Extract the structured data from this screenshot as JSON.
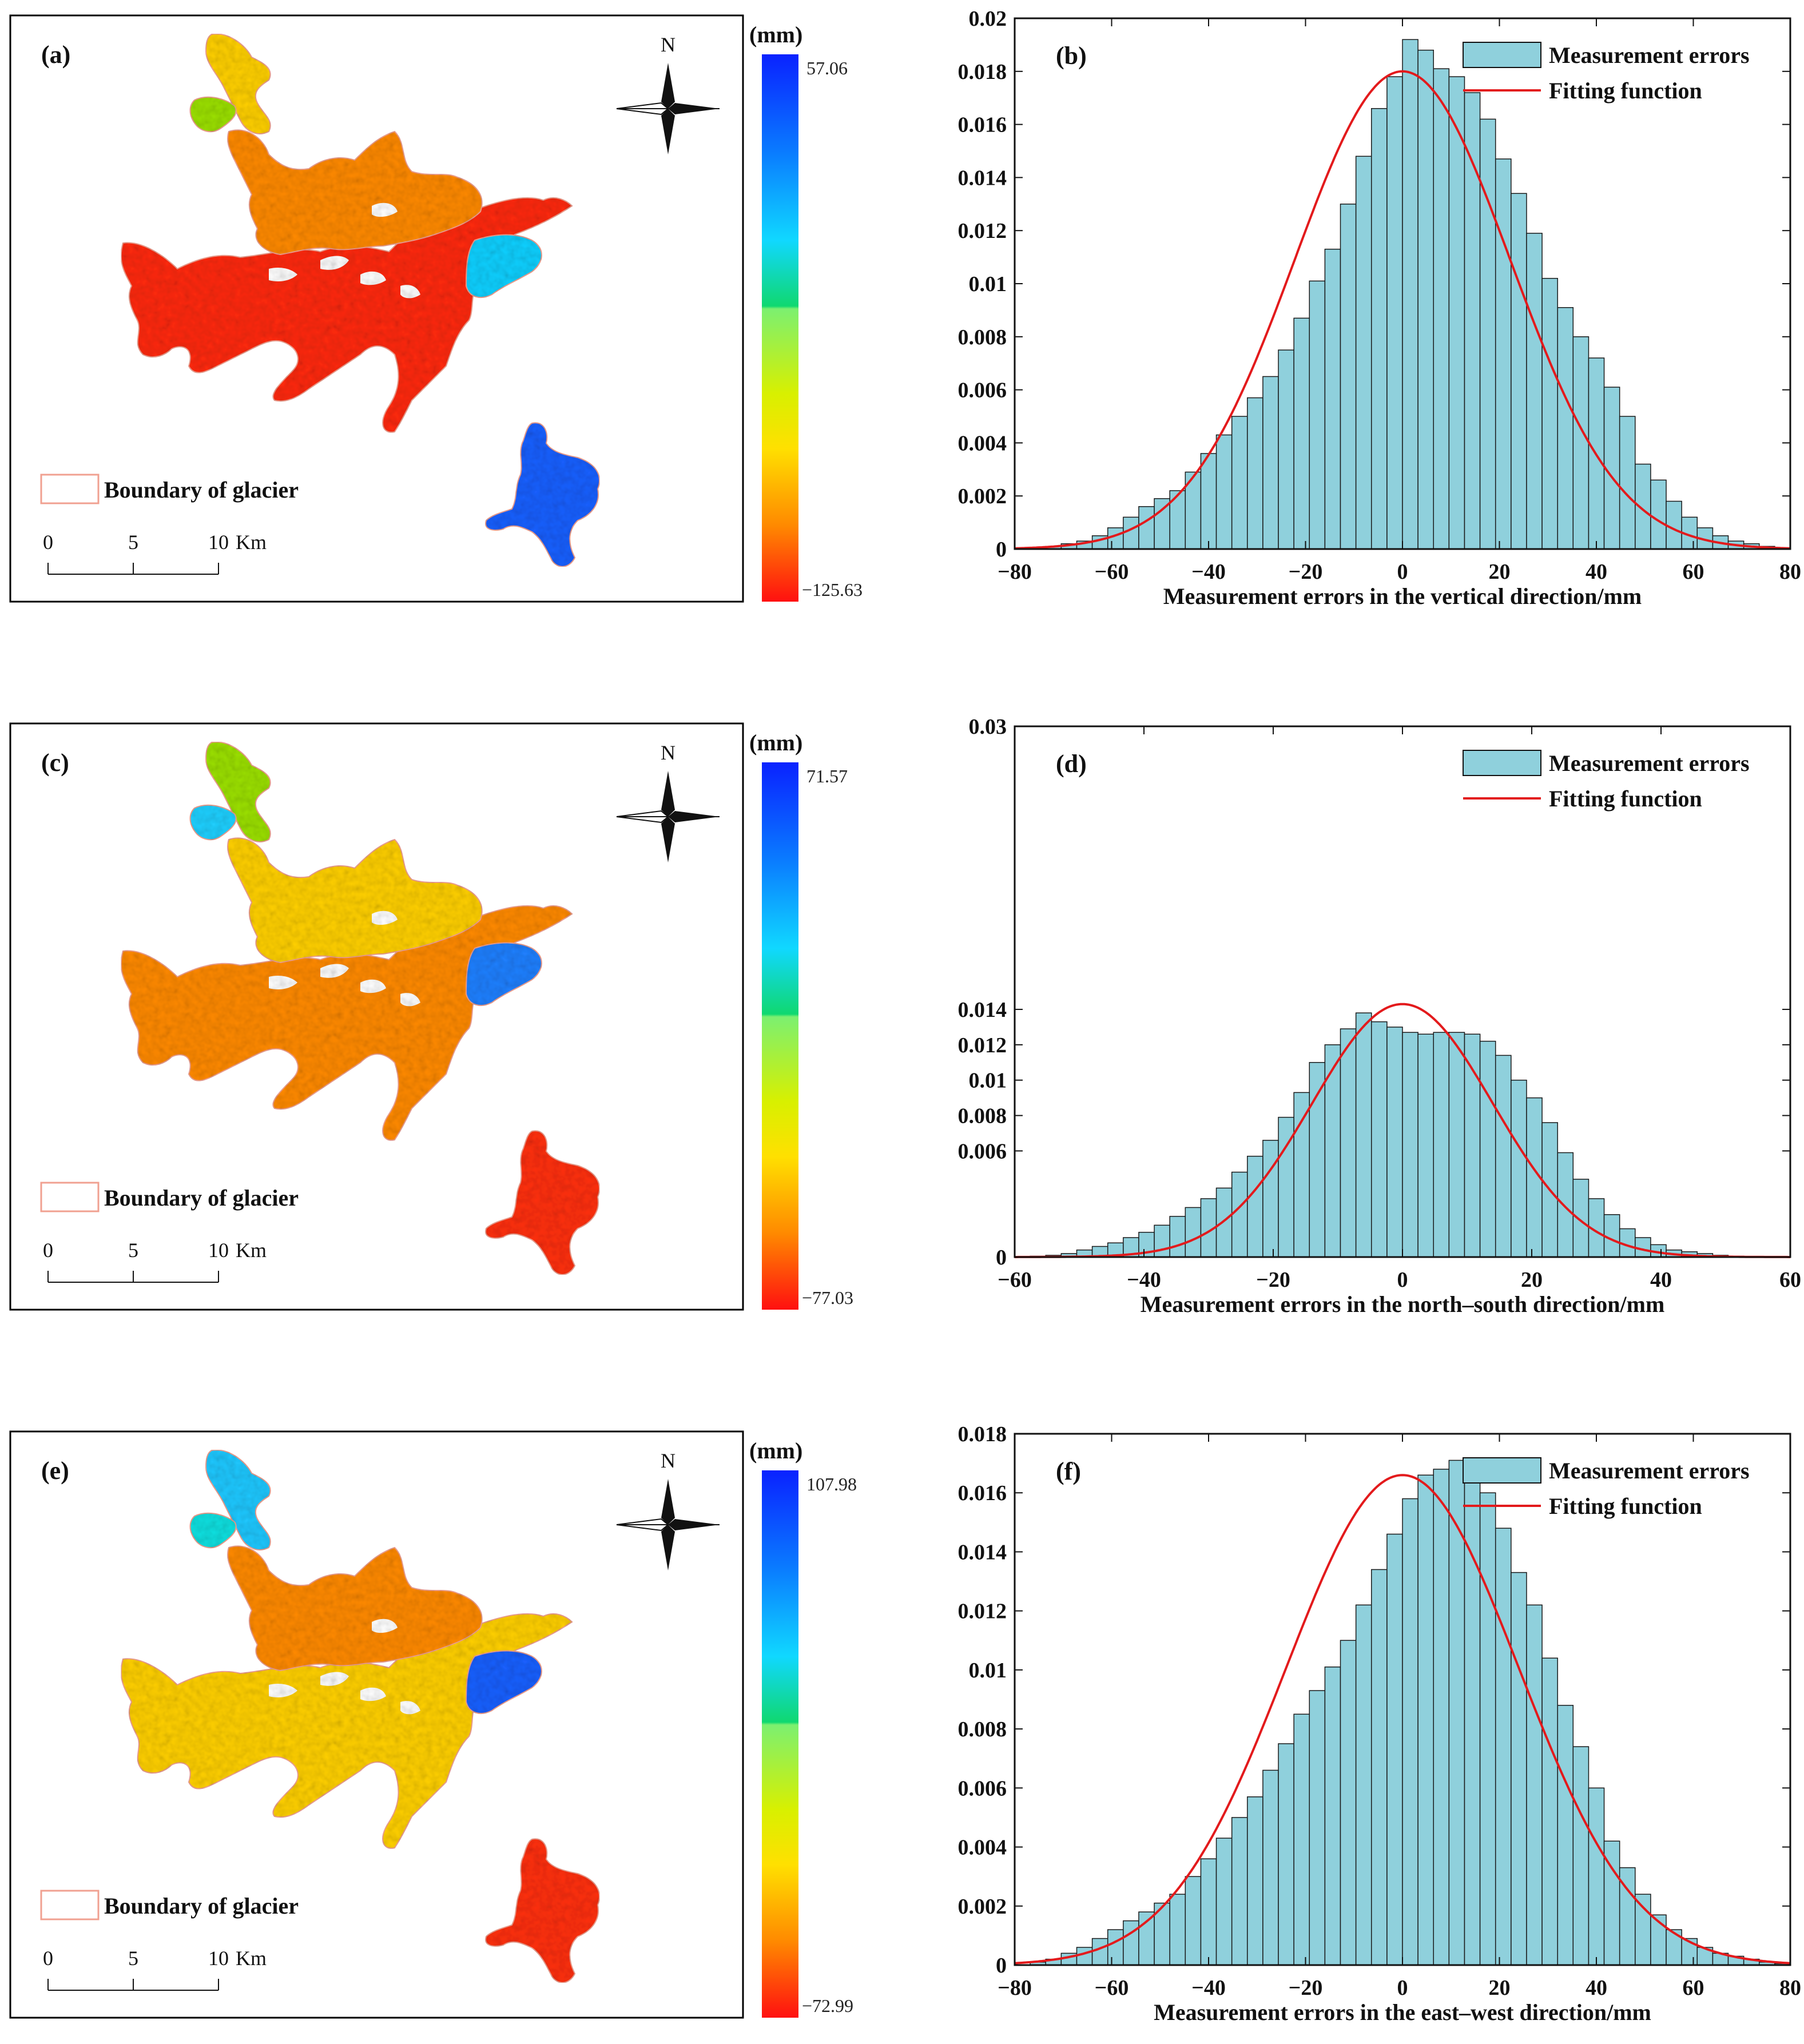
{
  "colors": {
    "bar_fill": "#8fd0dc",
    "bar_stroke": "#1a1a1a",
    "curve": "#e31a1c",
    "legend_swatch_fill": "#8fd0dc",
    "boundary": "#f0a090",
    "map_frame": "#000000"
  },
  "maps": [
    {
      "panel_label": "(a)",
      "unit": "(mm)",
      "max_value": "57.06",
      "min_value": "−125.63",
      "north_label": "N",
      "legend_label": "Boundary of glacier",
      "scale_ticks": [
        "0",
        "5",
        "10"
      ],
      "scale_unit": "Km",
      "icon": "compass-rose-icon",
      "glacier_palette": [
        "#ff2a10",
        "#ff8a00",
        "#ffd000",
        "#9be000",
        "#10d0ff",
        "#1a60ff"
      ]
    },
    {
      "panel_label": "(c)",
      "unit": "(mm)",
      "max_value": "71.57",
      "min_value": "−77.03",
      "north_label": "N",
      "legend_label": "Boundary of glacier",
      "scale_ticks": [
        "0",
        "5",
        "10"
      ],
      "scale_unit": "Km",
      "icon": "compass-rose-icon",
      "glacier_palette": [
        "#ff8a00",
        "#ffd000",
        "#9be000",
        "#20d0ff",
        "#2080ff",
        "#ff3010"
      ]
    },
    {
      "panel_label": "(e)",
      "unit": "(mm)",
      "max_value": "107.98",
      "min_value": "−72.99",
      "north_label": "N",
      "legend_label": "Boundary of glacier",
      "scale_ticks": [
        "0",
        "5",
        "10"
      ],
      "scale_unit": "Km",
      "icon": "compass-rose-icon",
      "glacier_palette": [
        "#ffd000",
        "#ff8a00",
        "#20c8ff",
        "#10e0e0",
        "#1a60ff",
        "#ff3010"
      ]
    }
  ],
  "chart_data": [
    {
      "panel_label": "(b)",
      "type": "bar",
      "subtype": "histogram-with-fit",
      "xlabel": "Measurement errors in the vertical direction/mm",
      "ylabel": "",
      "xlim": [
        -80,
        80
      ],
      "ylim": [
        0,
        0.02
      ],
      "xticks": [
        -80,
        -60,
        -40,
        -20,
        0,
        20,
        40,
        60,
        80
      ],
      "yticks": [
        0,
        0.002,
        0.004,
        0.006,
        0.008,
        0.01,
        0.012,
        0.014,
        0.016,
        0.018,
        0.02
      ],
      "xtick_labels": [
        "−80",
        "−60",
        "−40",
        "−20",
        "0",
        "20",
        "40",
        "60",
        "80"
      ],
      "ytick_labels": [
        "0",
        "0.002",
        "0.004",
        "0.006",
        "0.008",
        "0.01",
        "0.012",
        "0.014",
        "0.016",
        "0.018",
        "0.02"
      ],
      "bin_start": -80,
      "bin_width": 3.2,
      "values": [
        0,
        5e-05,
        0.0001,
        0.0002,
        0.0003,
        0.0005,
        0.0008,
        0.0012,
        0.0016,
        0.0019,
        0.0022,
        0.0029,
        0.0036,
        0.0043,
        0.005,
        0.0057,
        0.0065,
        0.0075,
        0.0087,
        0.0101,
        0.0113,
        0.013,
        0.0148,
        0.0166,
        0.0178,
        0.0192,
        0.0188,
        0.0181,
        0.0178,
        0.0172,
        0.0162,
        0.0147,
        0.0134,
        0.0119,
        0.0102,
        0.0091,
        0.008,
        0.0072,
        0.0061,
        0.005,
        0.0032,
        0.0026,
        0.0018,
        0.0012,
        0.0008,
        0.0005,
        0.0003,
        0.0002,
        0.0001,
        5e-05
      ],
      "fit": {
        "type": "normal",
        "mu": 0,
        "sigma": 22.2,
        "peak": 0.018
      },
      "legend": [
        "Measurement errors",
        "Fitting function"
      ]
    },
    {
      "panel_label": "(d)",
      "type": "bar",
      "subtype": "histogram-with-fit",
      "xlabel": "Measurement errors in the north–south direction/mm",
      "ylabel": "",
      "xlim": [
        -60,
        60
      ],
      "ylim": [
        0,
        0.03
      ],
      "xticks": [
        -60,
        -40,
        -20,
        0,
        20,
        40,
        60
      ],
      "yticks": [
        0,
        0.006,
        0.008,
        0.01,
        0.012,
        0.014,
        0.03
      ],
      "xtick_labels": [
        "−60",
        "−40",
        "−20",
        "0",
        "20",
        "40",
        "60"
      ],
      "ytick_labels": [
        "0",
        "0.006",
        "0.008",
        "0.01",
        "0.012",
        "0.014",
        "0.03"
      ],
      "bin_start": -60,
      "bin_width": 2.4,
      "values": [
        0,
        5e-05,
        0.0001,
        0.0002,
        0.0004,
        0.0006,
        0.0008,
        0.0011,
        0.0014,
        0.0018,
        0.0023,
        0.0028,
        0.0033,
        0.0039,
        0.0048,
        0.0057,
        0.0066,
        0.0079,
        0.0093,
        0.011,
        0.012,
        0.0129,
        0.0138,
        0.0133,
        0.013,
        0.0127,
        0.0126,
        0.0127,
        0.0127,
        0.0126,
        0.0122,
        0.0114,
        0.01,
        0.009,
        0.0076,
        0.0059,
        0.0044,
        0.0033,
        0.0024,
        0.0016,
        0.0011,
        0.0007,
        0.0004,
        0.0003,
        0.0002,
        0.0001,
        5e-05,
        3e-05,
        2e-05,
        1e-05
      ],
      "fit": {
        "type": "normal",
        "mu": 0,
        "sigma": 14.0,
        "peak": 0.0143
      },
      "legend": [
        "Measurement errors",
        "Fitting function"
      ]
    },
    {
      "panel_label": "(f)",
      "type": "bar",
      "subtype": "histogram-with-fit",
      "xlabel": "Measurement errors in the east–west direction/mm",
      "ylabel": "",
      "xlim": [
        -80,
        80
      ],
      "ylim": [
        0,
        0.018
      ],
      "xticks": [
        -80,
        -60,
        -40,
        -20,
        0,
        20,
        40,
        60,
        80
      ],
      "yticks": [
        0,
        0.002,
        0.004,
        0.006,
        0.008,
        0.01,
        0.012,
        0.014,
        0.016,
        0.018
      ],
      "xtick_labels": [
        "−80",
        "−60",
        "−40",
        "−20",
        "0",
        "20",
        "40",
        "60",
        "80"
      ],
      "ytick_labels": [
        "0",
        "0.002",
        "0.004",
        "0.006",
        "0.008",
        "0.01",
        "0.012",
        "0.014",
        "0.016",
        "0.018"
      ],
      "bin_start": -80,
      "bin_width": 3.2,
      "values": [
        0,
        0.0001,
        0.0002,
        0.0004,
        0.0006,
        0.0009,
        0.0012,
        0.0015,
        0.0018,
        0.0021,
        0.0024,
        0.003,
        0.0036,
        0.0043,
        0.005,
        0.0057,
        0.0066,
        0.0075,
        0.0085,
        0.0093,
        0.0101,
        0.011,
        0.0122,
        0.0134,
        0.0146,
        0.0158,
        0.0166,
        0.0168,
        0.0171,
        0.0169,
        0.016,
        0.0148,
        0.0133,
        0.0122,
        0.0104,
        0.0088,
        0.0074,
        0.006,
        0.0042,
        0.0033,
        0.0024,
        0.0017,
        0.0012,
        0.0009,
        0.0006,
        0.0004,
        0.0003,
        0.0002,
        0.0001,
        5e-05
      ],
      "fit": {
        "type": "normal",
        "mu": 0,
        "sigma": 24.0,
        "peak": 0.0166
      },
      "legend": [
        "Measurement errors",
        "Fitting function"
      ]
    }
  ]
}
